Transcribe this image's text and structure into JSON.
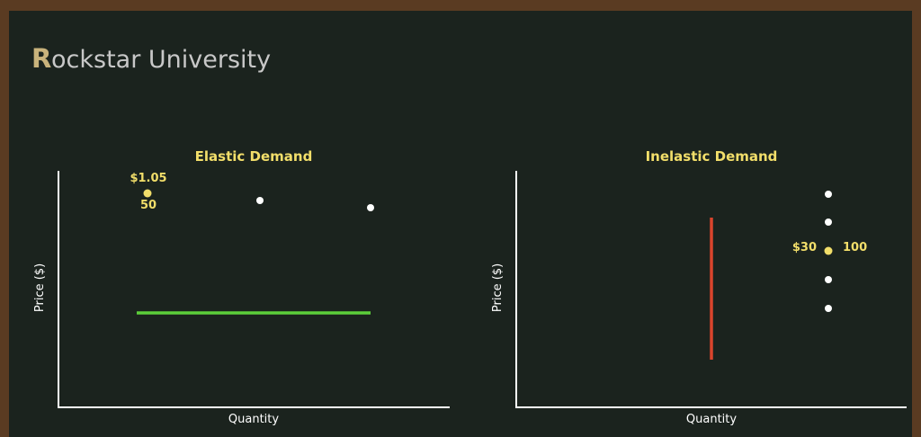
{
  "header": {
    "logo_initial": "R",
    "logo_rest": "ockstar University"
  },
  "panels": [
    {
      "title": "Elastic Demand",
      "y_axis_label": "Price ($)",
      "x_axis_label": "Quantity",
      "point_labels": [
        "$1.05",
        "50"
      ]
    },
    {
      "title": "Inelastic Demand",
      "y_axis_label": "Price ($)",
      "x_axis_label": "Quantity",
      "point_labels": [
        "$30",
        "100"
      ]
    }
  ]
}
